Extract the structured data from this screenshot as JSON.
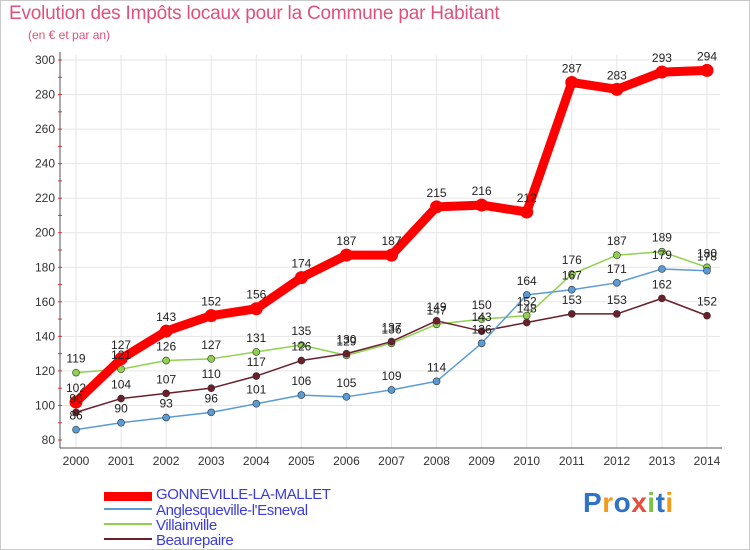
{
  "title": "Evolution des Impôts locaux pour la Commune par Habitant",
  "subtitle": "(en € et par an)",
  "brand": {
    "text": "Proxiti",
    "colors": [
      "#2f73c8",
      "#f29a1c",
      "#2f73c8",
      "#e74c3c",
      "#7cc242",
      "#2f73c8",
      "#f29a1c"
    ]
  },
  "chart_data": {
    "type": "line",
    "title": "Evolution des Impôts locaux pour la Commune par Habitant",
    "subtitle": "(en € et par an)",
    "xlabel": "",
    "ylabel": "",
    "ylim": [
      80,
      300
    ],
    "y_ticks": [
      80,
      100,
      120,
      140,
      160,
      180,
      200,
      220,
      240,
      260,
      280,
      300
    ],
    "grid": true,
    "legend_position": "bottom-left",
    "x": [
      "2000",
      "2001",
      "2002",
      "2003",
      "2004",
      "2005",
      "2006",
      "2007",
      "2008",
      "2009",
      "2010",
      "2011",
      "2012",
      "2013",
      "2014"
    ],
    "series": [
      {
        "name": "Villainville",
        "color": "#8fd14f",
        "values": [
          119,
          121,
          126,
          127,
          131,
          135,
          129,
          136,
          147,
          150,
          152,
          176,
          187,
          189,
          180
        ]
      },
      {
        "name": "Beaurepaire",
        "color": "#6b1f2a",
        "values": [
          96,
          104,
          107,
          110,
          117,
          126,
          130,
          137,
          149,
          143,
          148,
          153,
          153,
          162,
          152
        ]
      },
      {
        "name": "Anglesqueville-l'Esneval",
        "color": "#5b9bd5",
        "values": [
          86,
          90,
          93,
          96,
          101,
          106,
          105,
          109,
          114,
          136,
          164,
          167,
          171,
          179,
          178
        ]
      },
      {
        "name": "GONNEVILLE-LA-MALLET",
        "color": "#ff0000",
        "values": [
          102,
          127,
          143,
          152,
          156,
          174,
          187,
          187,
          215,
          216,
          212,
          287,
          283,
          293,
          294
        ]
      }
    ]
  },
  "legend": [
    {
      "name": "GONNEVILLE-LA-MALLET",
      "color": "#ff0000"
    },
    {
      "name": "Anglesqueville-l'Esneval",
      "color": "#5b9bd5"
    },
    {
      "name": "Villainville",
      "color": "#8fd14f"
    },
    {
      "name": "Beaurepaire",
      "color": "#6b1f2a"
    }
  ]
}
